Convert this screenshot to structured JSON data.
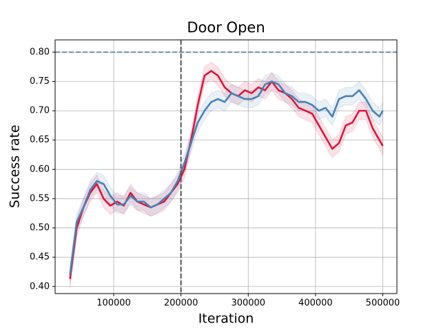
{
  "chart_data": {
    "type": "line",
    "title": "Door Open",
    "x_label": "Iteration",
    "y_label": "Success rate",
    "x": [
      35000,
      45000,
      55000,
      65000,
      75000,
      85000,
      95000,
      105000,
      115000,
      125000,
      135000,
      145000,
      155000,
      165000,
      175000,
      185000,
      195000,
      205000,
      215000,
      225000,
      235000,
      245000,
      255000,
      265000,
      275000,
      285000,
      295000,
      305000,
      315000,
      325000,
      335000,
      345000,
      355000,
      365000,
      375000,
      385000,
      395000,
      405000,
      415000,
      425000,
      435000,
      445000,
      455000,
      465000,
      475000,
      485000,
      495000,
      500000
    ],
    "series": [
      {
        "color": "#dc143c",
        "values": [
          0.413,
          0.5,
          0.535,
          0.56,
          0.575,
          0.55,
          0.538,
          0.545,
          0.538,
          0.56,
          0.545,
          0.54,
          0.535,
          0.54,
          0.545,
          0.56,
          0.575,
          0.6,
          0.65,
          0.71,
          0.76,
          0.768,
          0.76,
          0.74,
          0.73,
          0.725,
          0.735,
          0.73,
          0.74,
          0.735,
          0.75,
          0.735,
          0.73,
          0.72,
          0.705,
          0.7,
          0.695,
          0.675,
          0.655,
          0.635,
          0.645,
          0.675,
          0.68,
          0.7,
          0.7,
          0.67,
          0.65,
          0.64
        ],
        "lower": [
          0.398,
          0.485,
          0.52,
          0.545,
          0.56,
          0.535,
          0.523,
          0.53,
          0.523,
          0.545,
          0.53,
          0.525,
          0.52,
          0.525,
          0.53,
          0.545,
          0.56,
          0.585,
          0.635,
          0.695,
          0.745,
          0.753,
          0.745,
          0.725,
          0.715,
          0.71,
          0.72,
          0.715,
          0.725,
          0.72,
          0.735,
          0.72,
          0.715,
          0.705,
          0.69,
          0.685,
          0.68,
          0.66,
          0.64,
          0.62,
          0.63,
          0.66,
          0.665,
          0.685,
          0.685,
          0.655,
          0.635,
          0.625
        ],
        "upper": [
          0.428,
          0.515,
          0.55,
          0.575,
          0.59,
          0.565,
          0.553,
          0.56,
          0.553,
          0.575,
          0.56,
          0.555,
          0.55,
          0.555,
          0.56,
          0.575,
          0.59,
          0.615,
          0.665,
          0.725,
          0.775,
          0.783,
          0.775,
          0.755,
          0.745,
          0.74,
          0.75,
          0.745,
          0.755,
          0.75,
          0.765,
          0.75,
          0.745,
          0.735,
          0.72,
          0.715,
          0.71,
          0.69,
          0.67,
          0.65,
          0.66,
          0.69,
          0.695,
          0.715,
          0.715,
          0.685,
          0.665,
          0.655
        ]
      },
      {
        "color": "#4682b4",
        "values": [
          0.42,
          0.51,
          0.535,
          0.565,
          0.58,
          0.575,
          0.555,
          0.54,
          0.54,
          0.555,
          0.545,
          0.545,
          0.535,
          0.54,
          0.55,
          0.56,
          0.58,
          0.61,
          0.645,
          0.68,
          0.7,
          0.715,
          0.72,
          0.715,
          0.73,
          0.725,
          0.72,
          0.72,
          0.725,
          0.745,
          0.75,
          0.745,
          0.73,
          0.725,
          0.715,
          0.715,
          0.71,
          0.7,
          0.705,
          0.69,
          0.72,
          0.725,
          0.725,
          0.735,
          0.72,
          0.7,
          0.69,
          0.7
        ],
        "lower": [
          0.405,
          0.495,
          0.52,
          0.55,
          0.565,
          0.56,
          0.54,
          0.525,
          0.525,
          0.54,
          0.53,
          0.53,
          0.52,
          0.525,
          0.535,
          0.545,
          0.565,
          0.595,
          0.63,
          0.665,
          0.685,
          0.7,
          0.705,
          0.7,
          0.715,
          0.71,
          0.705,
          0.705,
          0.71,
          0.73,
          0.735,
          0.73,
          0.715,
          0.71,
          0.7,
          0.7,
          0.695,
          0.685,
          0.69,
          0.675,
          0.705,
          0.71,
          0.71,
          0.72,
          0.705,
          0.685,
          0.675,
          0.685
        ],
        "upper": [
          0.435,
          0.525,
          0.55,
          0.58,
          0.595,
          0.59,
          0.57,
          0.555,
          0.555,
          0.57,
          0.56,
          0.56,
          0.55,
          0.555,
          0.565,
          0.575,
          0.595,
          0.625,
          0.66,
          0.695,
          0.715,
          0.73,
          0.735,
          0.73,
          0.745,
          0.74,
          0.735,
          0.735,
          0.74,
          0.76,
          0.765,
          0.76,
          0.745,
          0.74,
          0.73,
          0.73,
          0.725,
          0.715,
          0.72,
          0.705,
          0.735,
          0.74,
          0.74,
          0.75,
          0.735,
          0.715,
          0.705,
          0.715
        ]
      }
    ],
    "hlines": [
      {
        "y": 0.8,
        "color": "#6a93b5"
      }
    ],
    "vlines": [
      {
        "x": 200000,
        "color": "#555555"
      }
    ],
    "xlim": [
      12900,
      521000
    ],
    "ylim": [
      0.388,
      0.821
    ],
    "xticks": [
      100000,
      200000,
      300000,
      400000,
      500000
    ],
    "yticks": [
      {
        "value": 0.4,
        "label": "0.40"
      },
      0.45,
      {
        "value": 0.5,
        "label": "0.50"
      },
      0.55,
      {
        "value": 0.6,
        "label": "0.60"
      },
      0.65,
      {
        "value": 0.7,
        "label": "0.70"
      },
      0.75,
      {
        "value": 0.8,
        "label": "0.80"
      }
    ],
    "grid": true
  }
}
